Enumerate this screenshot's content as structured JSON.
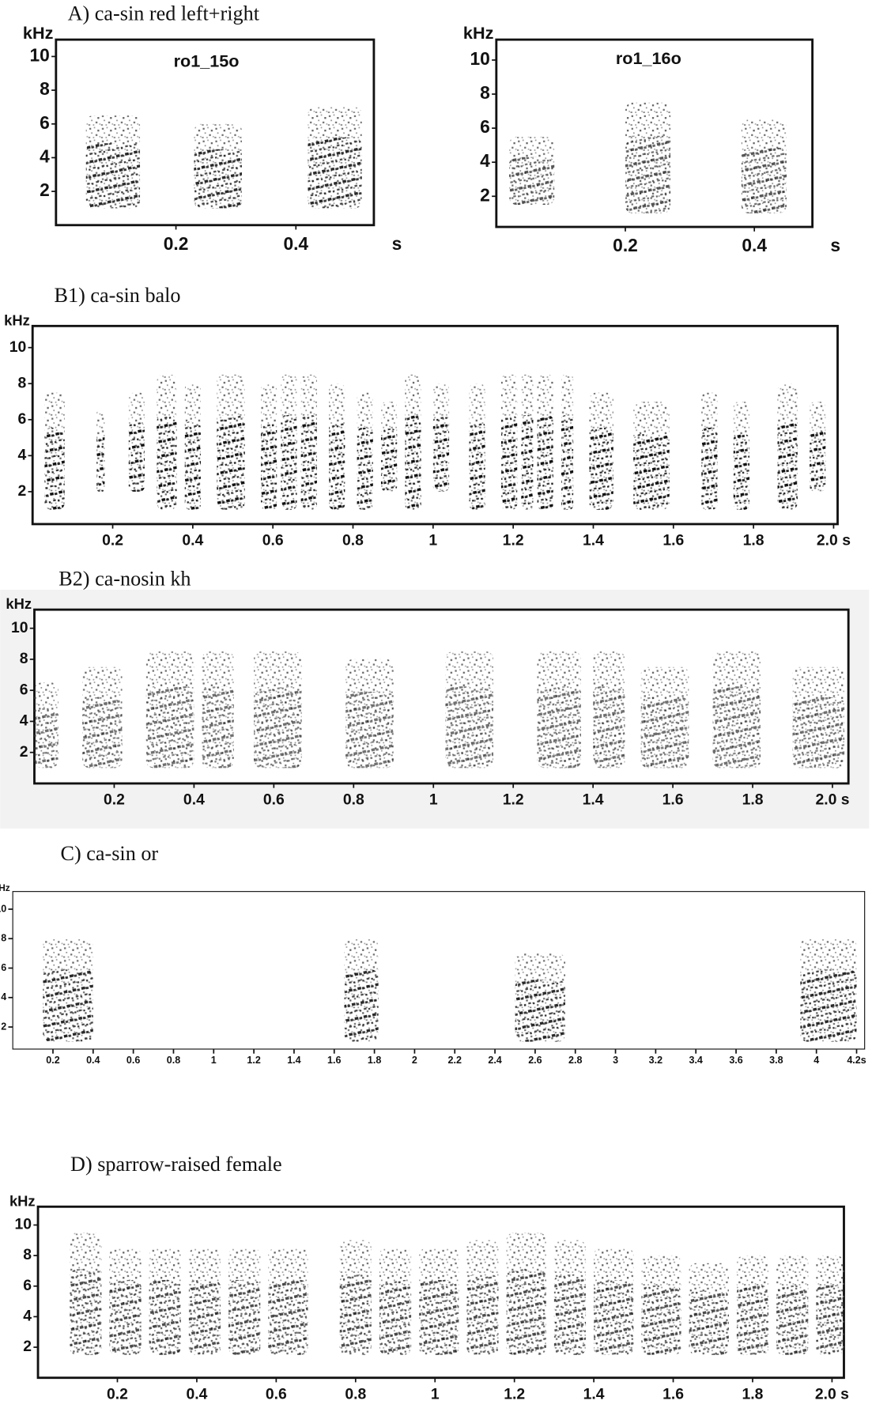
{
  "chart_data": [
    {
      "type": "spectrogram",
      "title": "A) ca-sin red left+right",
      "y_label": "kHz",
      "x_label": "s",
      "annotation": "ro1_15o",
      "xlim": [
        0,
        0.53
      ],
      "ylim": [
        0,
        11
      ],
      "xticks": [
        0.2,
        0.4
      ],
      "yticks": [
        2,
        4,
        6,
        8,
        10
      ],
      "syllables": [
        [
          0.05,
          0.14,
          1,
          6.5
        ],
        [
          0.23,
          0.31,
          1,
          6
        ],
        [
          0.42,
          0.51,
          1,
          7
        ]
      ]
    },
    {
      "type": "spectrogram",
      "y_label": "kHz",
      "x_label": "s",
      "annotation": "ro1_16o",
      "xlim": [
        0,
        0.49
      ],
      "ylim": [
        0.2,
        11.2
      ],
      "xticks": [
        0.2,
        0.4
      ],
      "yticks": [
        2,
        4,
        6,
        8,
        10
      ],
      "syllables": [
        [
          0.02,
          0.09,
          1.5,
          5.5
        ],
        [
          0.2,
          0.27,
          1,
          7.5
        ],
        [
          0.38,
          0.45,
          1,
          6.5
        ]
      ]
    },
    {
      "type": "spectrogram",
      "title": "B1) ca-sin balo",
      "y_label": "kHz",
      "xlim": [
        0,
        2.01
      ],
      "ylim": [
        0.2,
        11.2
      ],
      "xticks": [
        0.2,
        0.4,
        0.6,
        0.8,
        1.0,
        1.2,
        1.4,
        1.6,
        1.8,
        {
          "value": 2.0,
          "label": "2.0 s"
        }
      ],
      "yticks": [
        2,
        4,
        6,
        8,
        10
      ],
      "syllables": [
        [
          0.03,
          0.08,
          1,
          7.5
        ],
        [
          0.16,
          0.18,
          2,
          6.5
        ],
        [
          0.24,
          0.28,
          2,
          7.5
        ],
        [
          0.31,
          0.36,
          1,
          8.5
        ],
        [
          0.38,
          0.42,
          1,
          8
        ],
        [
          0.46,
          0.53,
          1,
          8.5
        ],
        [
          0.57,
          0.61,
          1,
          8
        ],
        [
          0.62,
          0.66,
          1,
          8.5
        ],
        [
          0.67,
          0.71,
          1,
          8.5
        ],
        [
          0.74,
          0.78,
          1,
          8
        ],
        [
          0.81,
          0.85,
          1,
          7.5
        ],
        [
          0.87,
          0.91,
          2,
          7
        ],
        [
          0.93,
          0.97,
          1,
          8.5
        ],
        [
          1.0,
          1.04,
          2,
          8
        ],
        [
          1.09,
          1.13,
          1,
          8
        ],
        [
          1.17,
          1.21,
          1,
          8.5
        ],
        [
          1.22,
          1.25,
          1,
          8.5
        ],
        [
          1.26,
          1.3,
          1,
          8.5
        ],
        [
          1.32,
          1.35,
          1,
          8.5
        ],
        [
          1.39,
          1.45,
          1,
          7.5
        ],
        [
          1.5,
          1.59,
          1,
          7
        ],
        [
          1.67,
          1.71,
          1,
          7.5
        ],
        [
          1.75,
          1.79,
          1,
          7
        ],
        [
          1.86,
          1.91,
          1,
          8
        ],
        [
          1.94,
          1.98,
          2,
          7
        ]
      ]
    },
    {
      "type": "spectrogram",
      "title": "B2) ca-nosin kh",
      "y_label": "kHz",
      "xlim": [
        0,
        2.04
      ],
      "ylim": [
        0,
        11.2
      ],
      "xticks": [
        0.2,
        0.4,
        0.6,
        0.8,
        1.0,
        1.2,
        1.4,
        1.6,
        1.8,
        {
          "value": 2.0,
          "label": "2.0 s"
        }
      ],
      "yticks": [
        2,
        4,
        6,
        8,
        10
      ],
      "syllables": [
        [
          0.0,
          0.06,
          1,
          6.5
        ],
        [
          0.12,
          0.22,
          1,
          7.5
        ],
        [
          0.28,
          0.4,
          1,
          8.5
        ],
        [
          0.42,
          0.5,
          1,
          8.5
        ],
        [
          0.55,
          0.67,
          1,
          8.5
        ],
        [
          0.78,
          0.9,
          1,
          8
        ],
        [
          1.03,
          1.15,
          1,
          8.5
        ],
        [
          1.26,
          1.37,
          1,
          8.5
        ],
        [
          1.4,
          1.48,
          1,
          8.5
        ],
        [
          1.52,
          1.64,
          1,
          7.5
        ],
        [
          1.7,
          1.82,
          1,
          8.5
        ],
        [
          1.9,
          2.03,
          1,
          7.5
        ]
      ]
    },
    {
      "type": "spectrogram",
      "title": "C) ca-sin or",
      "y_label": "kHz",
      "xlim": [
        0,
        4.24
      ],
      "ylim": [
        0.5,
        11.2
      ],
      "xticks": [
        0.2,
        0.4,
        0.6,
        0.8,
        1.0,
        1.2,
        1.4,
        1.6,
        1.8,
        2.0,
        2.2,
        2.4,
        2.6,
        2.8,
        3.0,
        3.2,
        3.4,
        3.6,
        3.8,
        4.0,
        {
          "value": 4.2,
          "label": "4.2s"
        }
      ],
      "yticks": [
        2,
        4,
        6,
        8,
        10
      ],
      "syllables": [
        [
          0.15,
          0.4,
          1,
          8
        ],
        [
          1.65,
          1.82,
          1,
          8
        ],
        [
          2.5,
          2.75,
          1,
          7
        ],
        [
          3.92,
          4.2,
          1,
          8
        ]
      ]
    },
    {
      "type": "spectrogram",
      "title": "D) sparrow-raised female",
      "y_label": "kHz",
      "xlim": [
        0,
        2.03
      ],
      "ylim": [
        0,
        11.2
      ],
      "xticks": [
        0.2,
        0.4,
        0.6,
        0.8,
        1.0,
        1.2,
        1.4,
        1.6,
        1.8,
        {
          "value": 2.0,
          "label": "2.0 s"
        }
      ],
      "yticks": [
        2,
        4,
        6,
        8,
        10
      ],
      "syllables": [
        [
          0.08,
          0.16,
          1.5,
          9.5
        ],
        [
          0.18,
          0.26,
          1.5,
          8.5
        ],
        [
          0.28,
          0.36,
          1.5,
          8.5
        ],
        [
          0.38,
          0.46,
          1.5,
          8.5
        ],
        [
          0.48,
          0.56,
          1.5,
          8.5
        ],
        [
          0.58,
          0.68,
          1.5,
          8.5
        ],
        [
          0.76,
          0.84,
          1.5,
          9
        ],
        [
          0.86,
          0.94,
          1.5,
          8.5
        ],
        [
          0.96,
          1.06,
          1.5,
          8.5
        ],
        [
          1.08,
          1.16,
          1.5,
          9
        ],
        [
          1.18,
          1.28,
          1.5,
          9.5
        ],
        [
          1.3,
          1.38,
          1.5,
          9
        ],
        [
          1.4,
          1.5,
          1.5,
          8.5
        ],
        [
          1.52,
          1.62,
          1.5,
          8
        ],
        [
          1.64,
          1.74,
          1.5,
          7.5
        ],
        [
          1.76,
          1.84,
          1.5,
          8
        ],
        [
          1.86,
          1.94,
          1.5,
          8
        ],
        [
          1.96,
          2.03,
          1.5,
          8
        ]
      ]
    }
  ]
}
